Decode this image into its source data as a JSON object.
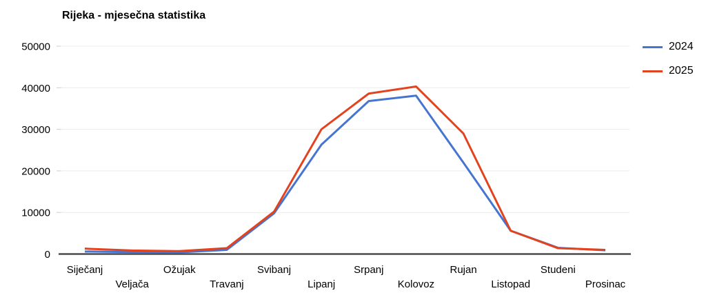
{
  "chart_data": {
    "type": "line",
    "title": "Rijeka - mjesečna statistika",
    "categories": [
      "Siječanj",
      "Veljača",
      "Ožujak",
      "Travanj",
      "Svibanj",
      "Lipanj",
      "Srpanj",
      "Kolovoz",
      "Rujan",
      "Listopad",
      "Studeni",
      "Prosinac"
    ],
    "series": [
      {
        "name": "2024",
        "color": "#4674d1",
        "values": [
          600,
          450,
          400,
          1000,
          9800,
          26300,
          36800,
          38100,
          22000,
          5600,
          1500,
          900
        ]
      },
      {
        "name": "2025",
        "color": "#e2431e",
        "values": [
          1300,
          850,
          700,
          1400,
          10200,
          30000,
          38600,
          40300,
          29000,
          5600,
          1400,
          1000
        ]
      }
    ],
    "ylim": [
      0,
      50000
    ],
    "yticks": [
      0,
      10000,
      20000,
      30000,
      40000,
      50000
    ],
    "grid": true,
    "legend_position": "right"
  },
  "colors": {
    "gridline": "#ececec",
    "tick": "#cccccc",
    "axis_baseline": "#4a4a4a",
    "text": "#000000",
    "background": "#ffffff"
  }
}
